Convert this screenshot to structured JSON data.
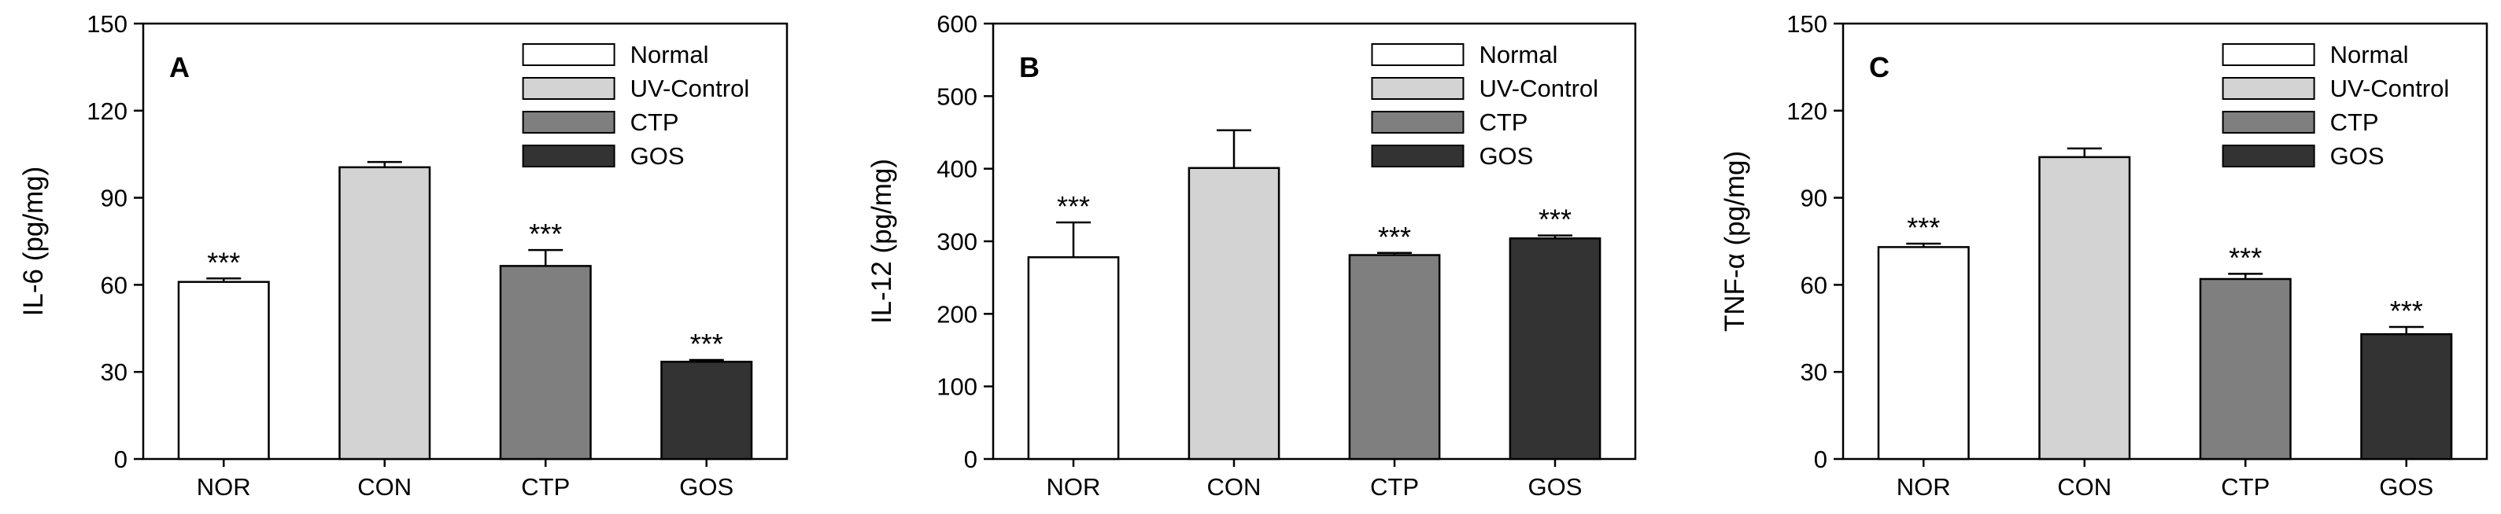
{
  "chart_data": [
    {
      "type": "bar",
      "panel": "A",
      "ylabel": "IL-6 (pg/mg)",
      "xlabel": "",
      "ylim": [
        0,
        150
      ],
      "yticks": [
        0,
        30,
        60,
        90,
        120,
        150
      ],
      "categories": [
        "NOR",
        "CON",
        "CTP",
        "GOS"
      ],
      "values": [
        61,
        100.5,
        66.5,
        33.5
      ],
      "errors": [
        1.2,
        1.8,
        5.5,
        0.6
      ],
      "significance": [
        "***",
        "",
        "***",
        "***"
      ],
      "legend": [
        "Normal",
        "UV-Control",
        "CTP",
        "GOS"
      ],
      "colors": [
        "#ffffff",
        "#d3d3d3",
        "#7f7f7f",
        "#333333"
      ]
    },
    {
      "type": "bar",
      "panel": "B",
      "ylabel": "IL-12 (pg/mg)",
      "xlabel": "",
      "ylim": [
        0,
        600
      ],
      "yticks": [
        0,
        100,
        200,
        300,
        400,
        500,
        600
      ],
      "categories": [
        "NOR",
        "CON",
        "CTP",
        "GOS"
      ],
      "values": [
        278,
        401,
        281,
        304
      ],
      "errors": [
        48,
        52,
        3,
        4
      ],
      "significance": [
        "***",
        "",
        "***",
        "***"
      ],
      "legend": [
        "Normal",
        "UV-Control",
        "CTP",
        "GOS"
      ],
      "colors": [
        "#ffffff",
        "#d3d3d3",
        "#7f7f7f",
        "#333333"
      ]
    },
    {
      "type": "bar",
      "panel": "C",
      "ylabel": "TNF-α  (pg/mg)",
      "xlabel": "",
      "ylim": [
        0,
        150
      ],
      "yticks": [
        0,
        30,
        60,
        90,
        120,
        150
      ],
      "categories": [
        "NOR",
        "CON",
        "CTP",
        "GOS"
      ],
      "values": [
        73,
        104,
        62,
        43
      ],
      "errors": [
        1.2,
        3,
        1.8,
        2.5
      ],
      "significance": [
        "***",
        "",
        "***",
        "***"
      ],
      "legend": [
        "Normal",
        "UV-Control",
        "CTP",
        "GOS"
      ],
      "colors": [
        "#ffffff",
        "#d3d3d3",
        "#7f7f7f",
        "#333333"
      ]
    }
  ]
}
